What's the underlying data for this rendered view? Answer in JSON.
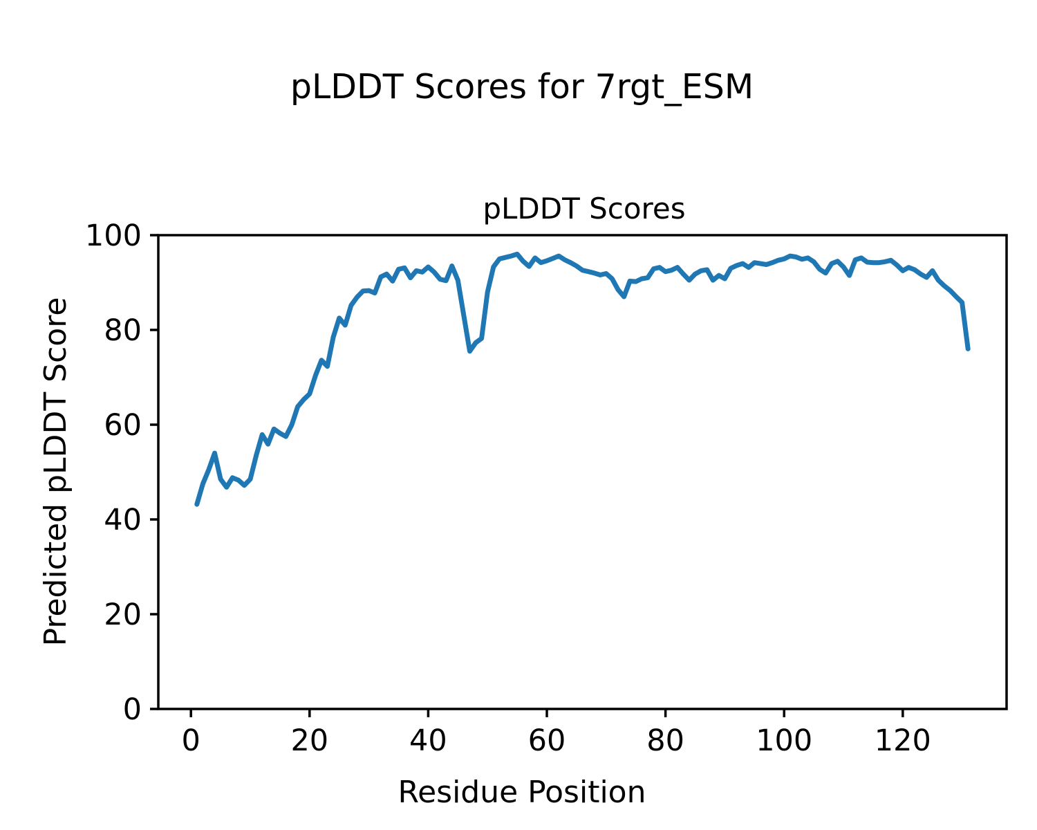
{
  "figure_title": "pLDDT Scores for 7rgt_ESM",
  "colors": {
    "line": "#1f77b4",
    "axes": "#000000",
    "background": "#ffffff"
  },
  "chart_data": {
    "type": "line",
    "title": "pLDDT Scores",
    "xlabel": "Residue Position",
    "ylabel": "Predicted pLDDT Score",
    "xlim": [
      -5.5,
      137.5
    ],
    "ylim": [
      0,
      100
    ],
    "x_ticks": [
      0,
      20,
      40,
      60,
      80,
      100,
      120
    ],
    "y_ticks": [
      0,
      20,
      40,
      60,
      80,
      100
    ],
    "grid": false,
    "legend": "none",
    "series": [
      {
        "name": "pLDDT",
        "x": [
          1,
          2,
          3,
          4,
          5,
          6,
          7,
          8,
          9,
          10,
          11,
          12,
          13,
          14,
          15,
          16,
          17,
          18,
          19,
          20,
          21,
          22,
          23,
          24,
          25,
          26,
          27,
          28,
          29,
          30,
          31,
          32,
          33,
          34,
          35,
          36,
          37,
          38,
          39,
          40,
          41,
          42,
          43,
          44,
          45,
          46,
          47,
          48,
          49,
          50,
          51,
          52,
          53,
          54,
          55,
          56,
          57,
          58,
          59,
          60,
          61,
          62,
          63,
          64,
          65,
          66,
          67,
          68,
          69,
          70,
          71,
          72,
          73,
          74,
          75,
          76,
          77,
          78,
          79,
          80,
          81,
          82,
          83,
          84,
          85,
          86,
          87,
          88,
          89,
          90,
          91,
          92,
          93,
          94,
          95,
          96,
          97,
          98,
          99,
          100,
          101,
          102,
          103,
          104,
          105,
          106,
          107,
          108,
          109,
          110,
          111,
          112,
          113,
          114,
          115,
          116,
          117,
          118,
          119,
          120,
          121,
          122,
          123,
          124,
          125,
          126,
          127,
          128,
          129,
          130,
          131
        ],
        "values": [
          43.2,
          47.5,
          50.5,
          54.0,
          48.5,
          46.8,
          48.8,
          48.3,
          47.2,
          48.5,
          53.5,
          57.9,
          55.9,
          59.1,
          58.2,
          57.5,
          60.0,
          63.8,
          65.3,
          66.5,
          70.4,
          73.6,
          72.3,
          78.5,
          82.5,
          81.0,
          85.2,
          86.9,
          88.2,
          88.3,
          87.8,
          91.2,
          91.8,
          90.3,
          92.8,
          93.1,
          91.0,
          92.5,
          92.2,
          93.3,
          92.2,
          90.7,
          90.4,
          93.5,
          90.5,
          83.0,
          75.5,
          77.3,
          78.2,
          88.0,
          93.3,
          95.0,
          95.3,
          95.6,
          96.0,
          94.5,
          93.4,
          95.2,
          94.2,
          94.6,
          95.1,
          95.6,
          94.8,
          94.2,
          93.5,
          92.6,
          92.3,
          92.0,
          91.6,
          91.9,
          90.8,
          88.5,
          87.0,
          90.3,
          90.2,
          90.8,
          91.0,
          92.9,
          93.2,
          92.3,
          92.6,
          93.2,
          91.8,
          90.5,
          91.8,
          92.5,
          92.7,
          90.5,
          91.5,
          90.8,
          93.0,
          93.6,
          94.0,
          93.2,
          94.2,
          94.0,
          93.8,
          94.2,
          94.7,
          95.0,
          95.6,
          95.4,
          94.9,
          95.2,
          94.4,
          92.8,
          92.0,
          94.0,
          94.5,
          93.3,
          91.5,
          94.8,
          95.2,
          94.3,
          94.2,
          94.2,
          94.4,
          94.7,
          93.7,
          92.5,
          93.2,
          92.7,
          91.8,
          91.1,
          92.5,
          90.5,
          89.3,
          88.3,
          87.0,
          85.8,
          76.0
        ]
      }
    ]
  }
}
